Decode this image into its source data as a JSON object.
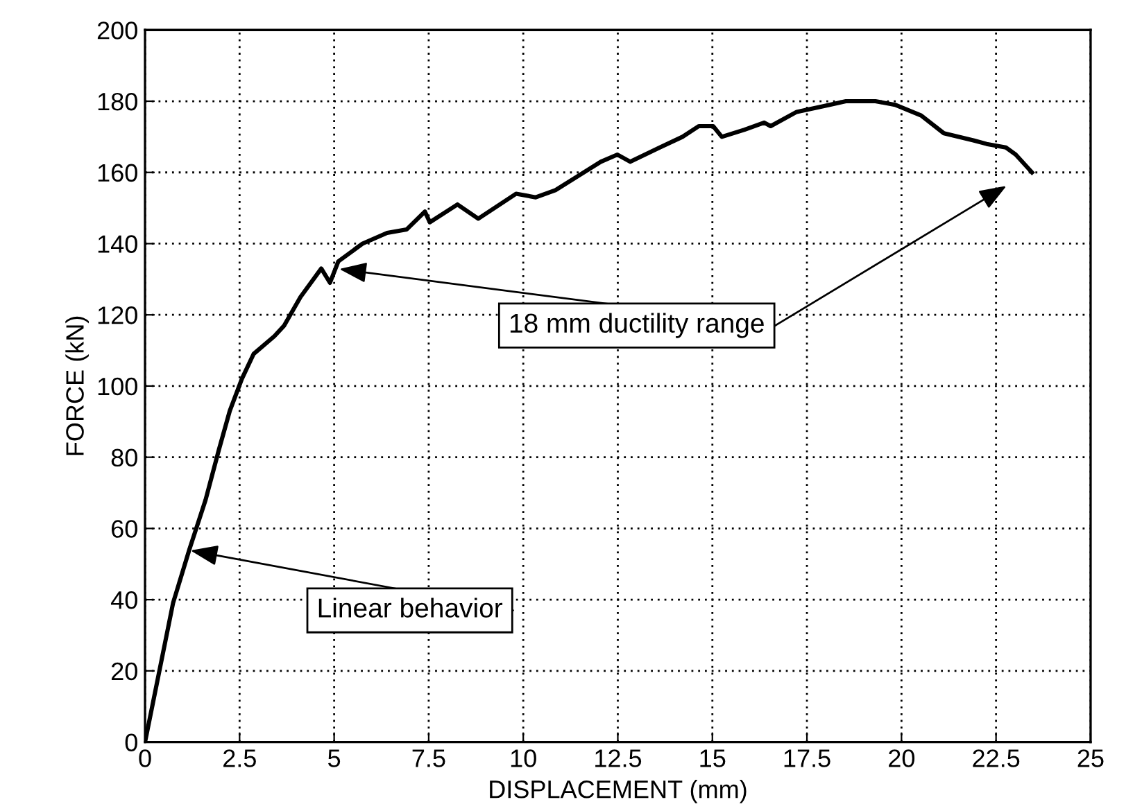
{
  "chart_data": {
    "type": "line",
    "xlabel": "DISPLACEMENT (mm)",
    "ylabel": "FORCE (kN)",
    "xlim": [
      0,
      25
    ],
    "ylim": [
      0,
      200
    ],
    "xticks": [
      0,
      2.5,
      5,
      7.5,
      10,
      12.5,
      15,
      17.5,
      20,
      22.5,
      25
    ],
    "yticks": [
      0,
      20,
      40,
      60,
      80,
      100,
      120,
      140,
      160,
      180,
      200
    ],
    "grid": true,
    "marker": "none",
    "line_style": "solid",
    "series": [
      {
        "color": "#000000",
        "x": [
          0,
          0.74,
          1.17,
          1.6,
          1.95,
          2.24,
          2.56,
          2.87,
          3.42,
          3.68,
          4.11,
          4.66,
          4.89,
          5.11,
          5.75,
          6.4,
          6.92,
          7.4,
          7.53,
          8.26,
          8.81,
          9.81,
          10.33,
          10.85,
          12.05,
          12.49,
          12.83,
          13.61,
          14.21,
          14.64,
          15.02,
          15.25,
          15.85,
          16.37,
          16.54,
          17.23,
          18.1,
          18.53,
          19.31,
          19.83,
          20.52,
          21.12,
          21.9,
          22.25,
          22.76,
          23.02,
          23.45
        ],
        "values": [
          0,
          39,
          54,
          68,
          82,
          93,
          102,
          109,
          114,
          117,
          125,
          133,
          129,
          135,
          140,
          143,
          144,
          149,
          146,
          151,
          147,
          154,
          153,
          155,
          163,
          165,
          163,
          167,
          170,
          173,
          173,
          170,
          172,
          174,
          173,
          177,
          179,
          180,
          180,
          179,
          176,
          171,
          169,
          168,
          167,
          165,
          160
        ]
      }
    ],
    "annotations": [
      {
        "text": "Linear behavior",
        "x": 1.1,
        "y": 54
      },
      "18 mm ductility range"
    ]
  }
}
